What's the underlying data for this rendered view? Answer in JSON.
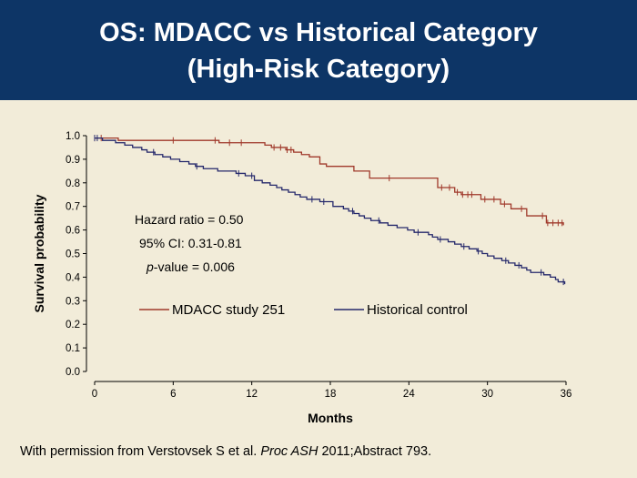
{
  "header": {
    "title_line1": "OS: MDACC vs Historical Category",
    "title_line2": "(High-Risk Category)"
  },
  "colors": {
    "header_bg": "#0d3566",
    "background": "#f2ecd9",
    "mdacc": "#a0392b",
    "historical": "#25286b"
  },
  "annotations": {
    "hazard_ratio": "Hazard ratio = 0.50",
    "ci": "95% CI: 0.31-0.81",
    "pvalue_prefix": "p",
    "pvalue_rest": "-value = 0.006"
  },
  "footer": {
    "prefix": "With permission from Verstovsek S et al. ",
    "journal": "Proc ASH",
    "suffix": " 2011;Abstract 793."
  },
  "chart_data": {
    "type": "line",
    "step": true,
    "xlabel": "Months",
    "ylabel": "Survival probability",
    "xlim": [
      0,
      36
    ],
    "ylim": [
      0,
      1.0
    ],
    "xticks": [
      "0",
      "6",
      "12",
      "18",
      "24",
      "30",
      "36"
    ],
    "yticks": [
      "0.0",
      "0.1",
      "0.2",
      "0.3",
      "0.4",
      "0.5",
      "0.6",
      "0.7",
      "0.8",
      "0.9",
      "1.0"
    ],
    "legend_position": "bottom-center",
    "series": [
      {
        "name": "MDACC study 251",
        "color": "#a0392b",
        "points": [
          [
            0,
            0.99
          ],
          [
            1.8,
            0.98
          ],
          [
            9.5,
            0.97
          ],
          [
            13,
            0.96
          ],
          [
            13.5,
            0.95
          ],
          [
            14.6,
            0.94
          ],
          [
            15.2,
            0.93
          ],
          [
            15.8,
            0.92
          ],
          [
            16.4,
            0.91
          ],
          [
            17.2,
            0.88
          ],
          [
            17.7,
            0.87
          ],
          [
            19.8,
            0.85
          ],
          [
            21,
            0.82
          ],
          [
            26,
            0.82
          ],
          [
            26.2,
            0.78
          ],
          [
            27.5,
            0.76
          ],
          [
            28,
            0.75
          ],
          [
            29.5,
            0.73
          ],
          [
            31,
            0.71
          ],
          [
            31.8,
            0.69
          ],
          [
            33,
            0.66
          ],
          [
            34.5,
            0.63
          ],
          [
            35.8,
            0.62
          ]
        ],
        "censor_x": [
          0,
          0.5,
          6,
          9.2,
          10.3,
          11.2,
          13.7,
          14.2,
          14.7,
          15,
          22.5,
          26.5,
          27.1,
          27.7,
          28.1,
          28.5,
          28.8,
          29.8,
          30.5,
          31.3,
          32.6,
          34.2,
          34.6,
          35,
          35.4,
          35.7
        ]
      },
      {
        "name": "Historical control",
        "color": "#25286b",
        "points": [
          [
            0,
            0.99
          ],
          [
            0.6,
            0.98
          ],
          [
            1.6,
            0.97
          ],
          [
            2.3,
            0.96
          ],
          [
            2.9,
            0.95
          ],
          [
            3.6,
            0.94
          ],
          [
            4,
            0.93
          ],
          [
            4.6,
            0.92
          ],
          [
            5.2,
            0.91
          ],
          [
            5.8,
            0.9
          ],
          [
            6.5,
            0.89
          ],
          [
            7.2,
            0.88
          ],
          [
            7.7,
            0.87
          ],
          [
            8.3,
            0.86
          ],
          [
            9.4,
            0.85
          ],
          [
            10.8,
            0.84
          ],
          [
            11.5,
            0.83
          ],
          [
            12.2,
            0.81
          ],
          [
            12.8,
            0.8
          ],
          [
            13.4,
            0.79
          ],
          [
            13.9,
            0.78
          ],
          [
            14.3,
            0.77
          ],
          [
            14.8,
            0.76
          ],
          [
            15.3,
            0.75
          ],
          [
            15.7,
            0.74
          ],
          [
            16.2,
            0.73
          ],
          [
            17.2,
            0.72
          ],
          [
            18.2,
            0.7
          ],
          [
            19,
            0.69
          ],
          [
            19.4,
            0.68
          ],
          [
            19.8,
            0.67
          ],
          [
            20.2,
            0.66
          ],
          [
            20.6,
            0.65
          ],
          [
            21.1,
            0.64
          ],
          [
            21.8,
            0.63
          ],
          [
            22.4,
            0.62
          ],
          [
            23.1,
            0.61
          ],
          [
            23.9,
            0.6
          ],
          [
            24.4,
            0.59
          ],
          [
            25.5,
            0.58
          ],
          [
            25.8,
            0.57
          ],
          [
            26.2,
            0.56
          ],
          [
            27,
            0.55
          ],
          [
            27.5,
            0.54
          ],
          [
            28,
            0.53
          ],
          [
            28.6,
            0.52
          ],
          [
            29.2,
            0.51
          ],
          [
            29.6,
            0.5
          ],
          [
            30,
            0.49
          ],
          [
            30.5,
            0.48
          ],
          [
            31.1,
            0.47
          ],
          [
            31.6,
            0.46
          ],
          [
            32.1,
            0.45
          ],
          [
            32.6,
            0.44
          ],
          [
            33,
            0.43
          ],
          [
            33.3,
            0.42
          ],
          [
            34.3,
            0.41
          ],
          [
            34.8,
            0.4
          ],
          [
            35.2,
            0.39
          ],
          [
            35.4,
            0.38
          ],
          [
            35.9,
            0.37
          ]
        ],
        "censor_x": [
          0,
          0.2,
          4.5,
          7.8,
          11,
          12,
          16.6,
          17.5,
          19.7,
          21.7,
          24.7,
          26.4,
          28.2,
          29.3,
          31.4,
          32.4,
          34.1,
          35.8
        ]
      }
    ]
  }
}
